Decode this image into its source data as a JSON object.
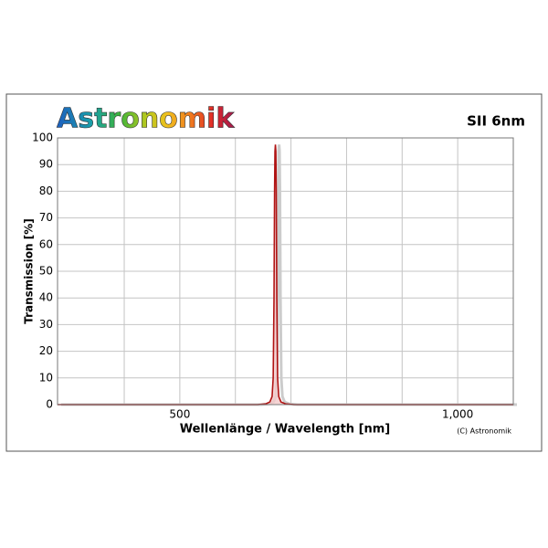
{
  "chart_data": {
    "type": "line",
    "brand": "Astronomik",
    "title": "SII 6nm",
    "ylabel": "Transmission [%]",
    "xlabel": "Wellenlänge / Wavelength [nm]",
    "copyright": "(C) Astronomik",
    "xlim": [
      280,
      1100
    ],
    "ylim": [
      0,
      100
    ],
    "xticks": [
      500,
      {
        "value": 1000,
        "label": "1,000"
      }
    ],
    "x_minor_grid": [
      400,
      600,
      700,
      800,
      900
    ],
    "yticks": [
      0,
      10,
      20,
      30,
      40,
      50,
      60,
      70,
      80,
      90,
      100
    ],
    "grid": true,
    "series": [
      {
        "color": "#b01414",
        "x": [
          280,
          640,
          655,
          662,
          666,
          668,
          669.5,
          670.5,
          671.2,
          672,
          672.8,
          673.5,
          674.5,
          676,
          678,
          682,
          690,
          705,
          1100
        ],
        "values": [
          0,
          0,
          0.3,
          1,
          3,
          10,
          40,
          80,
          95,
          97.5,
          95,
          80,
          40,
          10,
          3,
          1,
          0.3,
          0,
          0
        ]
      }
    ]
  }
}
